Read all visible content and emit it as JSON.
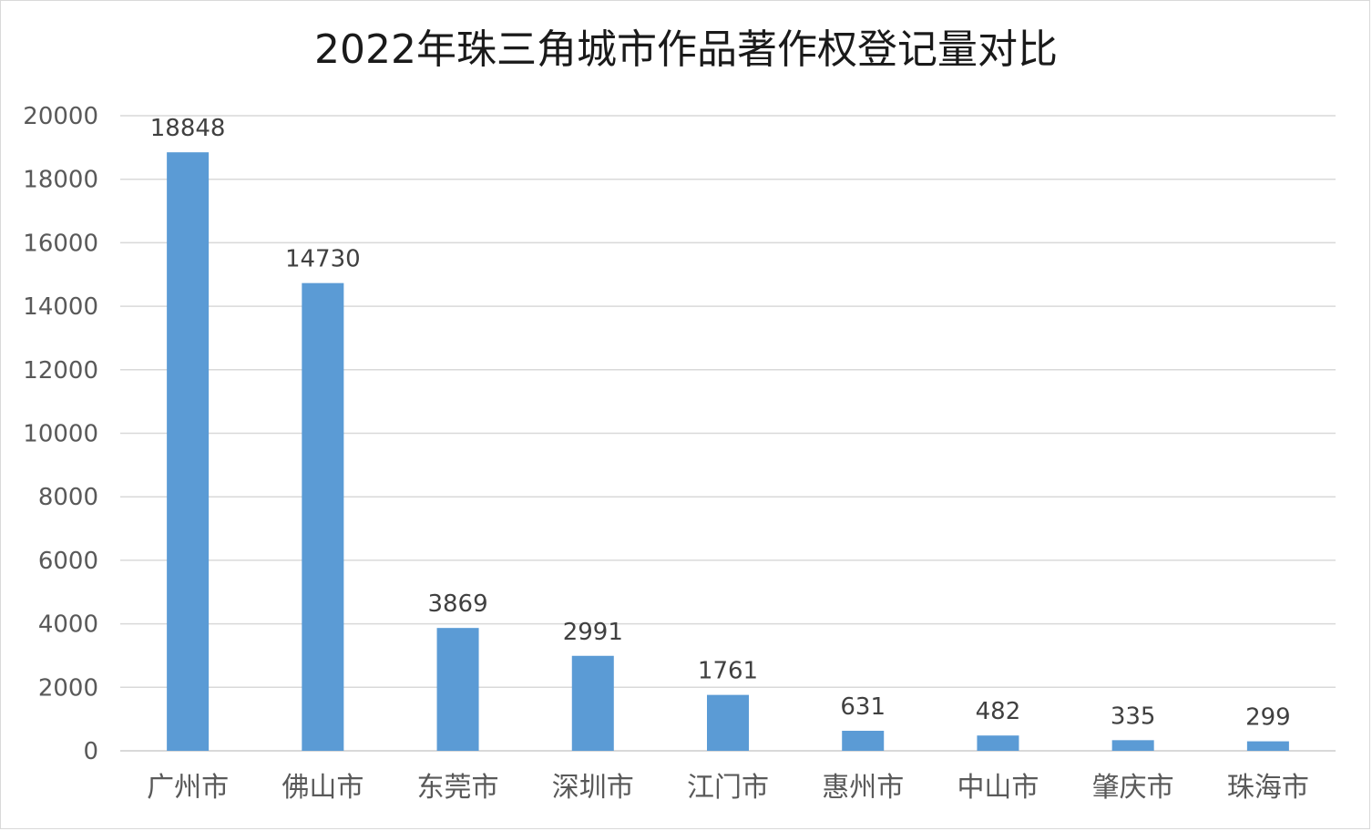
{
  "chart_data": {
    "type": "bar",
    "title": "2022年珠三角城市作品著作权登记量对比",
    "xlabel": "",
    "ylabel": "",
    "categories": [
      "广州市",
      "佛山市",
      "东莞市",
      "深圳市",
      "江门市",
      "惠州市",
      "中山市",
      "肇庆市",
      "珠海市"
    ],
    "values": [
      18848,
      14730,
      3869,
      2991,
      1761,
      631,
      482,
      335,
      299
    ],
    "ylim": [
      0,
      20000
    ],
    "yticks": [
      "0",
      "2000",
      "4000",
      "6000",
      "8000",
      "10000",
      "12000",
      "14000",
      "16000",
      "18000",
      "20000"
    ],
    "grid": true,
    "legend": "none",
    "bar_color": "#5b9bd5",
    "grid_color": "#d9d9d9"
  }
}
